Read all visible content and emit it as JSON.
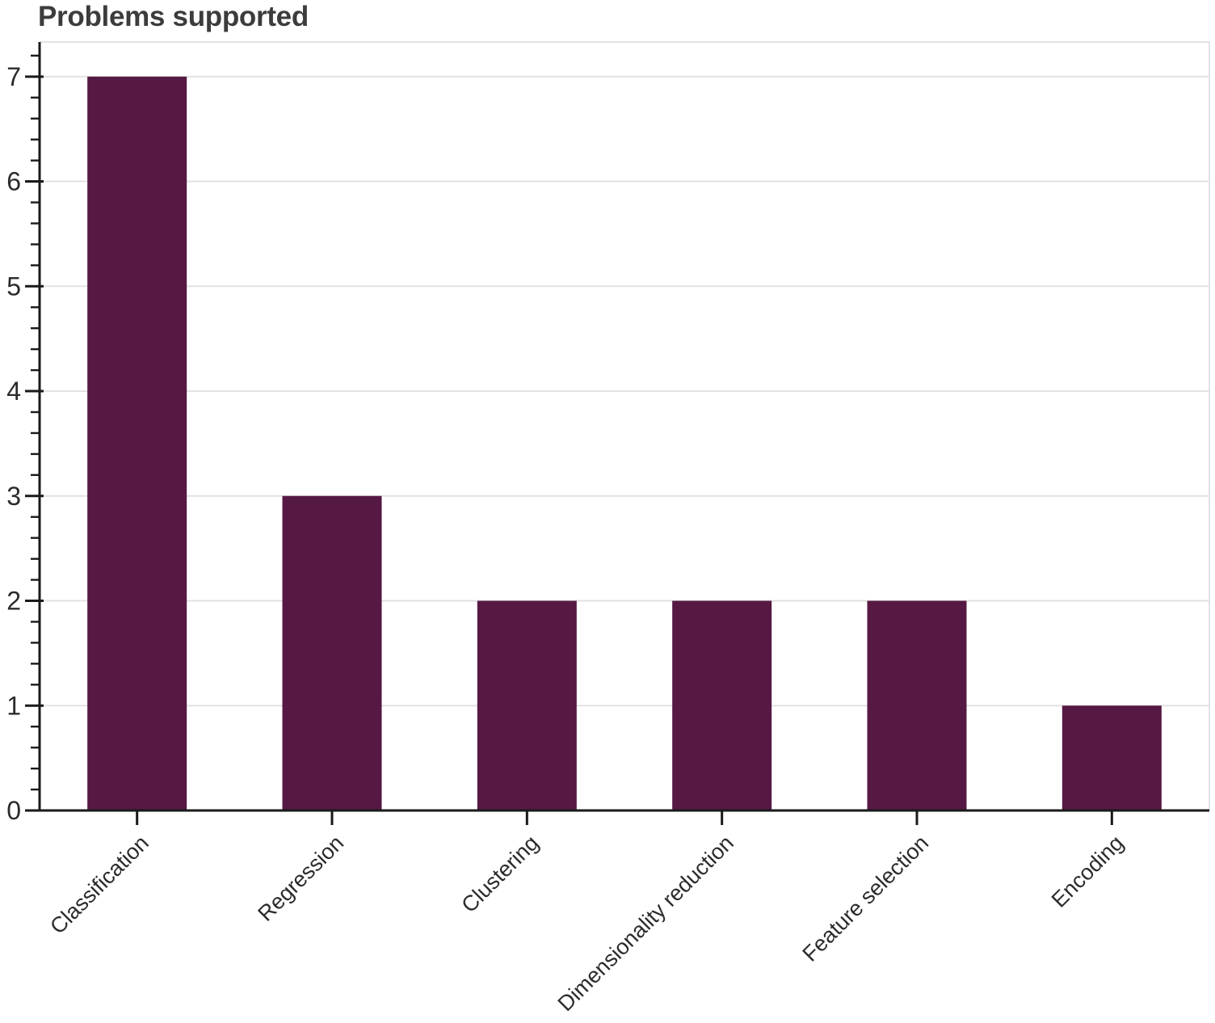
{
  "chart_data": {
    "type": "bar",
    "title": "Problems supported",
    "categories": [
      "Classification",
      "Regression",
      "Clustering",
      "Dimensionality reduction",
      "Feature selection",
      "Encoding"
    ],
    "values": [
      7,
      3,
      2,
      2,
      2,
      1
    ],
    "xlabel": "",
    "ylabel": "",
    "ylim": [
      0,
      7.33
    ],
    "yticks": [
      0,
      1,
      2,
      3,
      4,
      5,
      6,
      7
    ],
    "y_minor_tick_step": 0.2,
    "grid": "horizontal-major",
    "legend": "none",
    "x_label_rotation_deg": 45,
    "colors": {
      "bar": "#551944",
      "grid": "#e2e2e2",
      "axis": "#1a1a1a",
      "title_text": "#3c3c3c",
      "tick_label": "#2b2b2b",
      "background": "#ffffff"
    }
  }
}
